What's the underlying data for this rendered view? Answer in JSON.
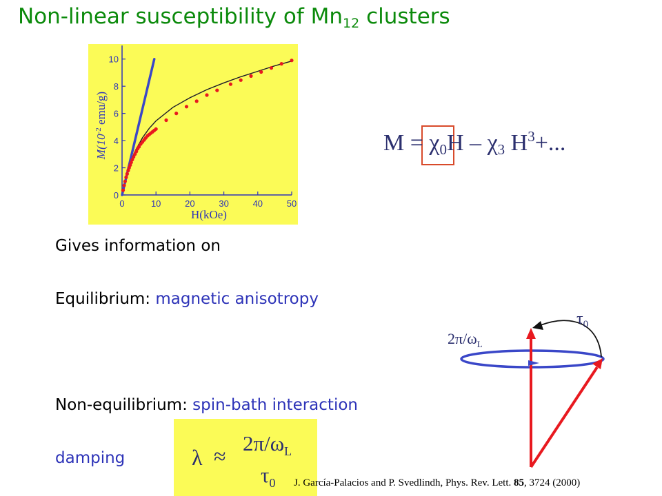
{
  "title": {
    "main": "Non-linear susceptibility of Mn",
    "sub": "12",
    "tail": " clusters"
  },
  "equation": {
    "lhs": "M = ",
    "chi": "χ",
    "sub0": "0",
    "h1": "H – ",
    "sub3": "3",
    "h2": " H",
    "sup3": "3",
    "tail": "+..."
  },
  "text": {
    "gives": "Gives information on",
    "equilibrium_label": "Equilibrium:",
    "equilibrium_value": "magnetic anisotropy",
    "nonequilibrium_label": "Non-equilibrium:",
    "nonequilibrium_value": "spin-bath interaction",
    "damping": "damping"
  },
  "formula": {
    "lambda": "λ",
    "approx": "≈",
    "numerator": "2π/ω",
    "num_sub": "L",
    "denominator": "τ",
    "den_sub": "0"
  },
  "diagram": {
    "tau_label": "τ",
    "tau_sub": "0",
    "omega_label": "2π/ω",
    "omega_sub": "L"
  },
  "citation": {
    "authors": "J. García-Palacios and P. Svedlindh, Phys. Rev. Lett. ",
    "volume": "85",
    "rest": ", 3724 (2000)"
  },
  "colors": {
    "title_green": "#0b8a0b",
    "accent_blue": "#2d33b8",
    "plot_yellow": "#fbfb57",
    "arrow_red": "#e8191f"
  },
  "chart_data": {
    "type": "scatter",
    "xlabel": "H(kOe)",
    "ylabel_base": "M(10",
    "ylabel_exp": "-2",
    "ylabel_unit": " emu/g)",
    "xlim": [
      0,
      50
    ],
    "ylim": [
      0,
      11
    ],
    "x_ticks": [
      0,
      10,
      20,
      30,
      40,
      50
    ],
    "y_ticks": [
      0,
      2,
      4,
      6,
      8,
      10
    ],
    "points": [
      [
        0.3,
        0.35
      ],
      [
        0.6,
        0.7
      ],
      [
        0.9,
        1.0
      ],
      [
        1.2,
        1.3
      ],
      [
        1.5,
        1.55
      ],
      [
        1.8,
        1.8
      ],
      [
        2.1,
        2.0
      ],
      [
        2.4,
        2.2
      ],
      [
        2.7,
        2.4
      ],
      [
        3.0,
        2.6
      ],
      [
        3.4,
        2.8
      ],
      [
        3.8,
        3.0
      ],
      [
        4.2,
        3.2
      ],
      [
        4.6,
        3.4
      ],
      [
        5.0,
        3.55
      ],
      [
        5.5,
        3.75
      ],
      [
        6.0,
        3.9
      ],
      [
        6.5,
        4.05
      ],
      [
        7.0,
        4.2
      ],
      [
        7.5,
        4.35
      ],
      [
        8.0,
        4.45
      ],
      [
        8.5,
        4.55
      ],
      [
        9.0,
        4.65
      ],
      [
        9.5,
        4.75
      ],
      [
        10.0,
        4.85
      ],
      [
        13,
        5.5
      ],
      [
        16,
        6.0
      ],
      [
        19,
        6.5
      ],
      [
        22,
        6.9
      ],
      [
        25,
        7.35
      ],
      [
        28,
        7.7
      ],
      [
        32,
        8.15
      ],
      [
        35,
        8.45
      ],
      [
        38,
        8.75
      ],
      [
        41,
        9.05
      ],
      [
        44,
        9.35
      ],
      [
        47,
        9.65
      ],
      [
        50,
        9.9
      ]
    ],
    "fit_curve": [
      [
        0,
        0
      ],
      [
        1,
        1.2
      ],
      [
        2,
        2.1
      ],
      [
        4,
        3.3
      ],
      [
        6,
        4.2
      ],
      [
        8,
        4.9
      ],
      [
        10,
        5.45
      ],
      [
        15,
        6.45
      ],
      [
        20,
        7.15
      ],
      [
        25,
        7.75
      ],
      [
        30,
        8.25
      ],
      [
        35,
        8.7
      ],
      [
        40,
        9.1
      ],
      [
        45,
        9.5
      ],
      [
        50,
        9.85
      ]
    ],
    "linear_line": [
      [
        0,
        0
      ],
      [
        9.5,
        10
      ]
    ]
  }
}
